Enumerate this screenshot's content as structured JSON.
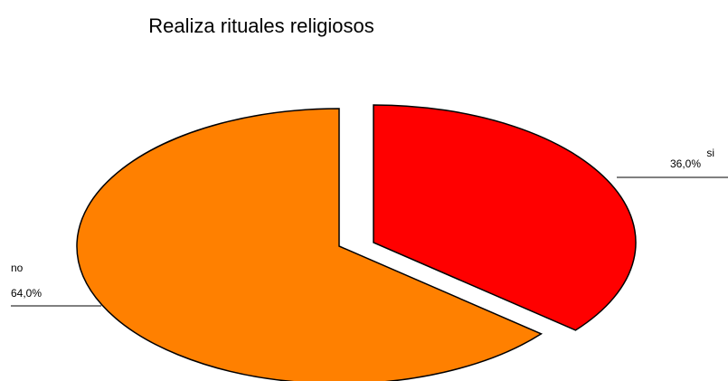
{
  "chart_data": {
    "type": "pie",
    "title": "Realiza rituales religiosos",
    "categories": [
      "si",
      "no"
    ],
    "values": [
      36,
      64
    ],
    "value_labels": [
      "36,0%",
      "64,0%"
    ],
    "colors": [
      "#ff0000",
      "#ff8000"
    ]
  }
}
